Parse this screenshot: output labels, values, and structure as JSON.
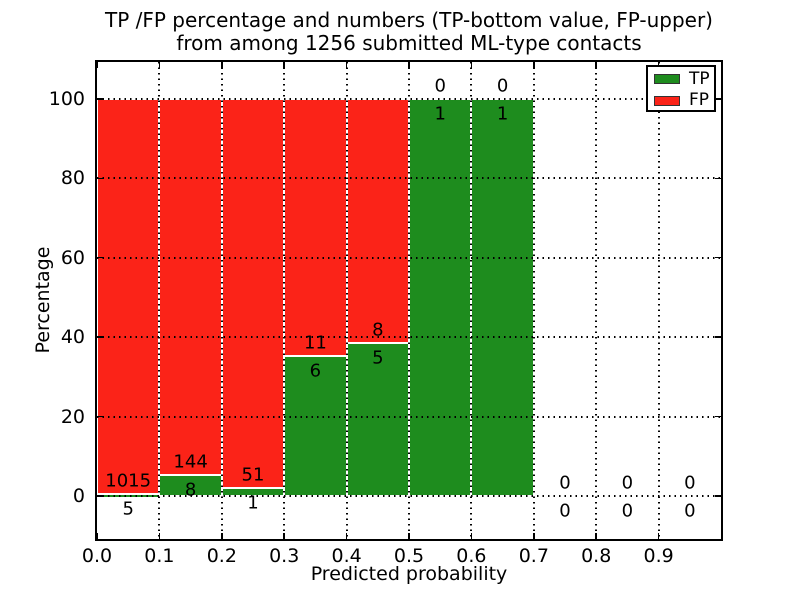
{
  "title": {
    "line1": "TP /FP percentage and numbers (TP-bottom value, FP-upper)",
    "line2": "from among 1256 submitted ML-type contacts"
  },
  "axes": {
    "xlabel": "Predicted probability",
    "ylabel": "Percentage",
    "x_tick_labels": [
      "0.0",
      "0.1",
      "0.2",
      "0.3",
      "0.4",
      "0.5",
      "0.6",
      "0.7",
      "0.8",
      "0.9"
    ],
    "y_tick_labels": [
      "0",
      "20",
      "40",
      "60",
      "80",
      "100"
    ],
    "y_tick_values": [
      0,
      20,
      40,
      60,
      80,
      100
    ]
  },
  "legend": {
    "position": "upper right",
    "items": [
      {
        "label": "TP",
        "color": "#1e8c1e"
      },
      {
        "label": "FP",
        "color": "#fb2318"
      }
    ]
  },
  "chart_data": {
    "type": "bar",
    "subtype": "stacked-percentage",
    "title": "TP /FP percentage and numbers (TP-bottom value, FP-upper) from among 1256 submitted ML-type contacts",
    "xlabel": "Predicted probability",
    "ylabel": "Percentage",
    "xlim": [
      0.0,
      1.0
    ],
    "ylim": [
      -11,
      109
    ],
    "grid": "dotted, horizontal every 20%, vertical every 0.1, drawn over bars",
    "bin_width": 0.1,
    "categories": [
      "0.0-0.1",
      "0.1-0.2",
      "0.2-0.3",
      "0.3-0.4",
      "0.4-0.5",
      "0.5-0.6",
      "0.6-0.7",
      "0.7-0.8",
      "0.8-0.9",
      "0.9-1.0"
    ],
    "series": [
      {
        "name": "TP",
        "color": "#1e8c1e",
        "counts": [
          5,
          8,
          1,
          6,
          5,
          1,
          1,
          0,
          0,
          0
        ]
      },
      {
        "name": "FP",
        "color": "#fb2318",
        "counts": [
          1015,
          144,
          51,
          11,
          8,
          0,
          0,
          0,
          0,
          0
        ]
      }
    ],
    "tp_percent": [
      0.49,
      5.26,
      1.92,
      35.29,
      38.46,
      100,
      100,
      0,
      0,
      0
    ],
    "total_contacts": 1256,
    "annotation_rule": "FP count printed above top of TP segment, TP count printed below it"
  }
}
